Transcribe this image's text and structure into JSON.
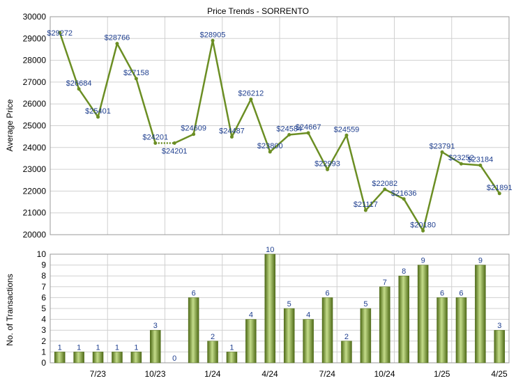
{
  "chart_data": [
    {
      "type": "line",
      "title": "Price Trends - SORRENTO",
      "ylabel": "Average Price",
      "xlabel": "",
      "ylim": [
        20000,
        30000
      ],
      "yticks": [
        "20000",
        "21000",
        "22000",
        "23000",
        "24000",
        "25000",
        "26000",
        "27000",
        "28000",
        "29000",
        "30000"
      ],
      "x_tick_labels": [
        "7/23",
        "10/23",
        "1/24",
        "4/24",
        "7/24",
        "10/24",
        "1/25",
        "4/25"
      ],
      "grid": true,
      "colors": {
        "line": "#6b8e23",
        "label": "#1f3f8f",
        "grid": "#d0d0d0"
      },
      "series": [
        {
          "values": [
            29272,
            26684,
            25401,
            28766,
            27158,
            24201,
            24201,
            24609,
            28905,
            24487,
            26212,
            23800,
            24584,
            24667,
            22993,
            24559,
            21117,
            22082,
            21636,
            20180,
            23791,
            23252,
            23184,
            21891
          ],
          "labels": [
            "$29272",
            "$26684",
            "$25401",
            "$28766",
            "$27158",
            "$24201",
            "$24201",
            "$24609",
            "$28905",
            "$24487",
            "$26212",
            "$23800",
            "$24584",
            "$24667",
            "$22993",
            "$24559",
            "$21117",
            "$22082",
            "$21636",
            "$20180",
            "$23791",
            "$23252",
            "$23184",
            "$21891"
          ],
          "gap_after_index": 5
        }
      ]
    },
    {
      "type": "bar",
      "ylabel": "No. of Transactions",
      "xlabel": "",
      "ylim": [
        0,
        10
      ],
      "yticks": [
        "0",
        "1",
        "2",
        "3",
        "4",
        "5",
        "6",
        "7",
        "8",
        "9",
        "10"
      ],
      "x_tick_labels": [
        "7/23",
        "10/23",
        "1/24",
        "4/24",
        "7/24",
        "10/24",
        "1/25",
        "4/25"
      ],
      "grid": true,
      "colors": {
        "bar_light": "#b9d27a",
        "bar_dark": "#5c7a1e",
        "label": "#1f3f8f"
      },
      "values": [
        1,
        1,
        1,
        1,
        1,
        3,
        0,
        6,
        2,
        1,
        4,
        10,
        5,
        4,
        6,
        2,
        5,
        7,
        8,
        9,
        6,
        6,
        9,
        3
      ]
    }
  ]
}
